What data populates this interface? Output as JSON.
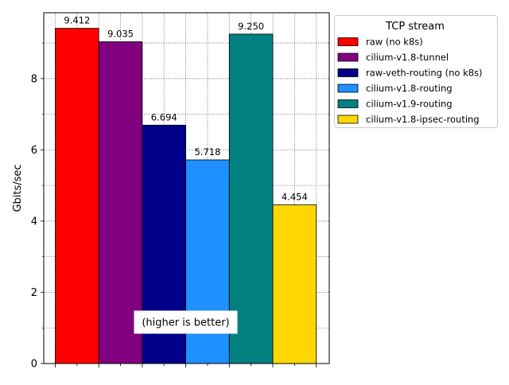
{
  "chart_data": {
    "type": "bar",
    "title": "",
    "xlabel": "",
    "ylabel": "Gbits/sec",
    "ylim": [
      0,
      9.85
    ],
    "yticks": [
      0,
      2,
      4,
      6,
      8
    ],
    "grid": true,
    "legend": {
      "title": "TCP stream",
      "placement": "outside-top-right"
    },
    "annotation": "(higher is better)",
    "series": [
      {
        "name": "raw (no k8s)",
        "value": 9.412,
        "label": "9.412",
        "color": "#ff0000"
      },
      {
        "name": "cilium-v1.8-tunnel",
        "value": 9.035,
        "label": "9.035",
        "color": "#800080"
      },
      {
        "name": "raw-veth-routing (no k8s)",
        "value": 6.694,
        "label": "6.694",
        "color": "#00008b"
      },
      {
        "name": "cilium-v1.8-routing",
        "value": 5.718,
        "label": "5.718",
        "color": "#1e90ff"
      },
      {
        "name": "cilium-v1.9-routing",
        "value": 9.25,
        "label": "9.250",
        "color": "#008080"
      },
      {
        "name": "cilium-v1.8-ipsec-routing",
        "value": 4.454,
        "label": "4.454",
        "color": "#ffd700"
      }
    ]
  }
}
